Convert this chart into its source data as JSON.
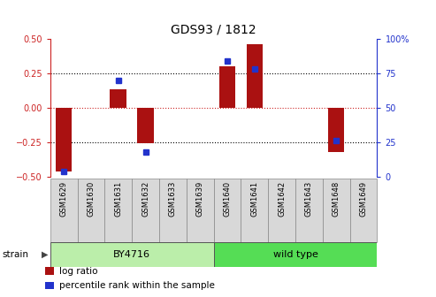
{
  "title": "GDS93 / 1812",
  "samples": [
    "GSM1629",
    "GSM1630",
    "GSM1631",
    "GSM1632",
    "GSM1633",
    "GSM1639",
    "GSM1640",
    "GSM1641",
    "GSM1642",
    "GSM1643",
    "GSM1648",
    "GSM1649"
  ],
  "log_ratio": [
    -0.46,
    0.0,
    0.13,
    -0.26,
    0.0,
    0.0,
    0.3,
    0.46,
    0.0,
    0.0,
    -0.32,
    0.0
  ],
  "percentile_rank": [
    4,
    0,
    70,
    18,
    0,
    0,
    84,
    78,
    0,
    0,
    26,
    0
  ],
  "bar_color": "#aa1111",
  "dot_color": "#2233cc",
  "strain_groups": [
    {
      "label": "BY4716",
      "start": 0,
      "end": 5,
      "color": "#bbeeaa"
    },
    {
      "label": "wild type",
      "start": 6,
      "end": 11,
      "color": "#55dd55"
    }
  ],
  "ylim_left": [
    -0.5,
    0.5
  ],
  "ylim_right": [
    0,
    100
  ],
  "yticks_left": [
    -0.5,
    -0.25,
    0,
    0.25,
    0.5
  ],
  "yticks_right": [
    0,
    25,
    50,
    75,
    100
  ],
  "dotted_lines_black": [
    -0.25,
    0.25
  ],
  "dotted_line_red": 0.0,
  "legend_items": [
    {
      "color": "#aa1111",
      "label": "log ratio"
    },
    {
      "color": "#2233cc",
      "label": "percentile rank within the sample"
    }
  ],
  "bar_width": 0.6,
  "bg_color": "#ffffff",
  "left_axis_color": "#cc2222",
  "right_axis_color": "#2233cc",
  "title_fontsize": 10,
  "tick_fontsize": 7,
  "sample_fontsize": 6,
  "strain_fontsize": 8,
  "legend_fontsize": 7.5
}
